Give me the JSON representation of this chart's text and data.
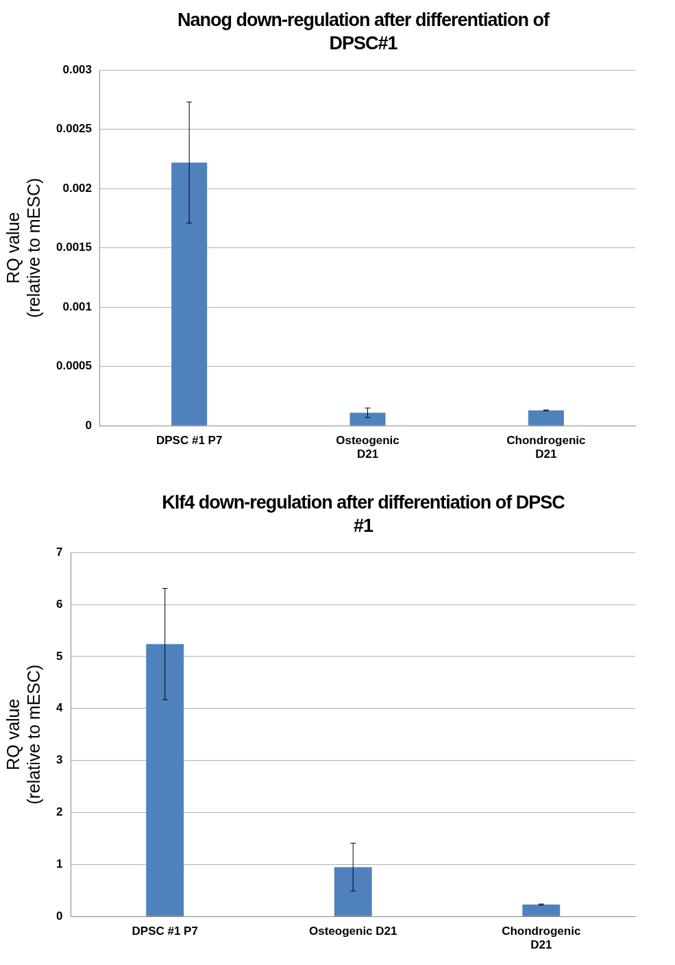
{
  "chart_data": [
    {
      "type": "bar",
      "title": "Nanog down-regulation after differentiation of DPSC#1",
      "ylabel": "RQ value\n(relative to mESC)",
      "categories": [
        "DPSC #1 P7",
        "Osteogenic D21",
        "Chondrogenic D21"
      ],
      "values": [
        0.00222,
        0.00011,
        0.00013
      ],
      "errors": [
        0.00051,
        4e-05,
        3e-06
      ],
      "color": "#4f81bd",
      "ylim": [
        0,
        0.003
      ],
      "yticks": [
        0,
        0.0005,
        0.001,
        0.0015,
        0.002,
        0.0025,
        0.003
      ],
      "grid": "y",
      "legend": false
    },
    {
      "type": "bar",
      "title": "Klf4 down-regulation after differentiation of DPSC #1",
      "ylabel": "RQ value\n(relative to mESC)",
      "categories": [
        "DPSC #1 P7",
        "Osteogenic D21",
        "Chondrogenic D21"
      ],
      "values": [
        5.24,
        0.95,
        0.23
      ],
      "errors": [
        1.07,
        0.46,
        0.01
      ],
      "color": "#4f81bd",
      "ylim": [
        0,
        7
      ],
      "yticks": [
        0,
        1,
        2,
        3,
        4,
        5,
        6,
        7
      ],
      "grid": "y",
      "legend": false
    }
  ]
}
